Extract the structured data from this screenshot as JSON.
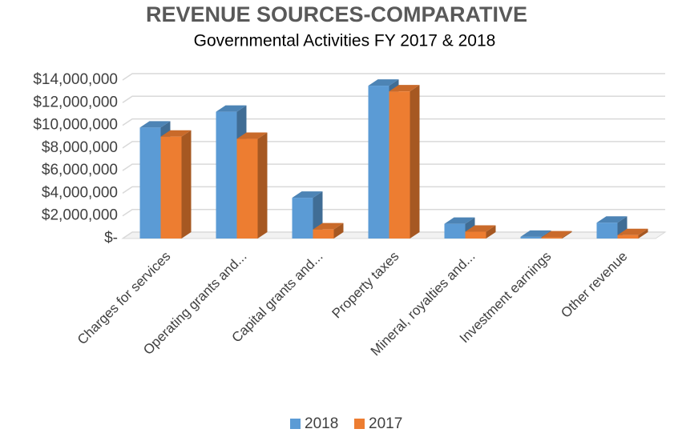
{
  "chart_data": {
    "type": "bar3d",
    "title": "REVENUE SOURCES-COMPARATIVE",
    "subtitle": "Governmental Activities FY 2017 & 2018",
    "categories": [
      "Charges for services",
      "Operating grants and...",
      "Capital grants and...",
      "Property taxes",
      "Mineral, royalties and...",
      "Investment earnings",
      "Other revenue"
    ],
    "series": [
      {
        "name": "2018",
        "color": "#5b9bd5",
        "values": [
          9800000,
          11200000,
          3600000,
          13500000,
          1300000,
          150000,
          1400000
        ]
      },
      {
        "name": "2017",
        "color": "#ed7d31",
        "values": [
          9000000,
          8800000,
          800000,
          13000000,
          600000,
          100000,
          300000
        ]
      }
    ],
    "ylim": [
      0,
      14000000
    ],
    "yticks": [
      {
        "value": 0,
        "label": "$-"
      },
      {
        "value": 2000000,
        "label": "$2,000,000"
      },
      {
        "value": 4000000,
        "label": "$4,000,000"
      },
      {
        "value": 6000000,
        "label": "$6,000,000"
      },
      {
        "value": 8000000,
        "label": "$8,000,000"
      },
      {
        "value": 10000000,
        "label": "$10,000,000"
      },
      {
        "value": 12000000,
        "label": "$12,000,000"
      },
      {
        "value": 14000000,
        "label": "$14,000,000"
      }
    ],
    "grid": true,
    "legend": "bottom"
  }
}
